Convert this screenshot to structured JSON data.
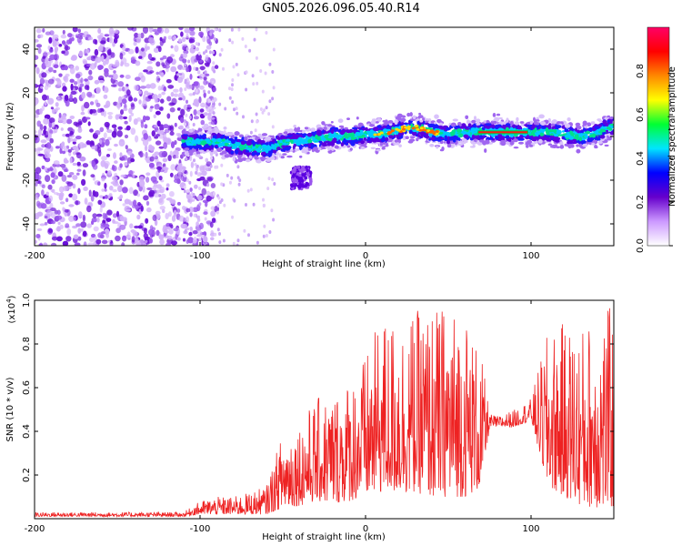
{
  "title": "GN05.2026.096.05.40.R14",
  "chart_data": [
    {
      "type": "heatmap",
      "title": "GN05.2026.096.05.40.R14",
      "xlabel": "Height of straight line (km)",
      "ylabel": "Frequency (Hz)",
      "xlim": [
        -200,
        150
      ],
      "ylim": [
        -50,
        50
      ],
      "xticks": [
        -200,
        -100,
        0,
        100
      ],
      "yticks": [
        -40,
        -20,
        0,
        20,
        40
      ],
      "xtick_labels": [
        "-200",
        "-100",
        "0",
        "100"
      ],
      "ytick_labels": [
        "-40",
        "-20",
        "0",
        "20",
        "40"
      ],
      "ridge": {
        "x": [
          -110,
          -100,
          -90,
          -80,
          -70,
          -60,
          -50,
          -40,
          -30,
          -20,
          -10,
          0,
          10,
          20,
          30,
          40,
          50,
          60,
          70,
          80,
          90,
          100,
          110,
          120,
          130,
          140,
          150
        ],
        "y": [
          -2,
          -3,
          -2,
          -4,
          -5,
          -6,
          -3,
          -2,
          -1,
          0,
          0,
          1,
          1,
          3,
          4,
          2,
          1,
          2,
          2,
          2,
          2,
          2,
          2,
          1,
          0,
          2,
          5
        ]
      },
      "colorbar": {
        "label": "Normalized spectral amplitude",
        "range": [
          0,
          1
        ],
        "ticks": [
          0.0,
          0.2,
          0.4,
          0.6,
          0.8
        ],
        "tick_labels": [
          "0.0",
          "0.2",
          "0.4",
          "0.6",
          "0.8"
        ],
        "colors": [
          "#ffffff",
          "#cc99ff",
          "#6600cc",
          "#0000ff",
          "#00e5ff",
          "#00ff33",
          "#ffff00",
          "#ff8800",
          "#ff0000",
          "#ff0066"
        ]
      }
    },
    {
      "type": "line",
      "xlabel": "Height of straight line (km)",
      "ylabel": "SNR (10 * v/v)",
      "y_scale_label": "(x10",
      "y_scale_exp": "4",
      "y_scale_close": ")",
      "xlim": [
        -200,
        150
      ],
      "ylim": [
        0,
        1.0
      ],
      "xticks": [
        -200,
        -100,
        0,
        100
      ],
      "yticks": [
        0.2,
        0.4,
        0.6,
        0.8,
        1.0
      ],
      "xtick_labels": [
        "-200",
        "-100",
        "0",
        "100"
      ],
      "ytick_labels": [
        "0.2",
        "0.4",
        "0.6",
        "0.8",
        "1.0"
      ],
      "series": [
        {
          "name": "SNR",
          "color": "#ee2222",
          "envelope": {
            "x": [
              -200,
              -150,
              -110,
              -100,
              -90,
              -80,
              -70,
              -60,
              -50,
              -40,
              -30,
              -20,
              -10,
              0,
              10,
              20,
              30,
              40,
              50,
              60,
              70,
              75,
              80,
              90,
              100,
              110,
              120,
              130,
              140,
              150
            ],
            "low": [
              0.01,
              0.01,
              0.01,
              0.02,
              0.02,
              0.02,
              0.02,
              0.02,
              0.05,
              0.06,
              0.08,
              0.07,
              0.08,
              0.1,
              0.12,
              0.12,
              0.12,
              0.1,
              0.1,
              0.1,
              0.14,
              0.42,
              0.42,
              0.42,
              0.45,
              0.15,
              0.1,
              0.06,
              0.05,
              0.05
            ],
            "high": [
              0.03,
              0.03,
              0.03,
              0.08,
              0.1,
              0.1,
              0.12,
              0.15,
              0.4,
              0.45,
              0.55,
              0.58,
              0.65,
              0.75,
              0.93,
              0.92,
              0.95,
              0.97,
              0.98,
              0.95,
              0.75,
              0.48,
              0.47,
              0.5,
              0.55,
              0.85,
              0.9,
              0.88,
              0.95,
              0.98
            ]
          }
        }
      ]
    }
  ]
}
